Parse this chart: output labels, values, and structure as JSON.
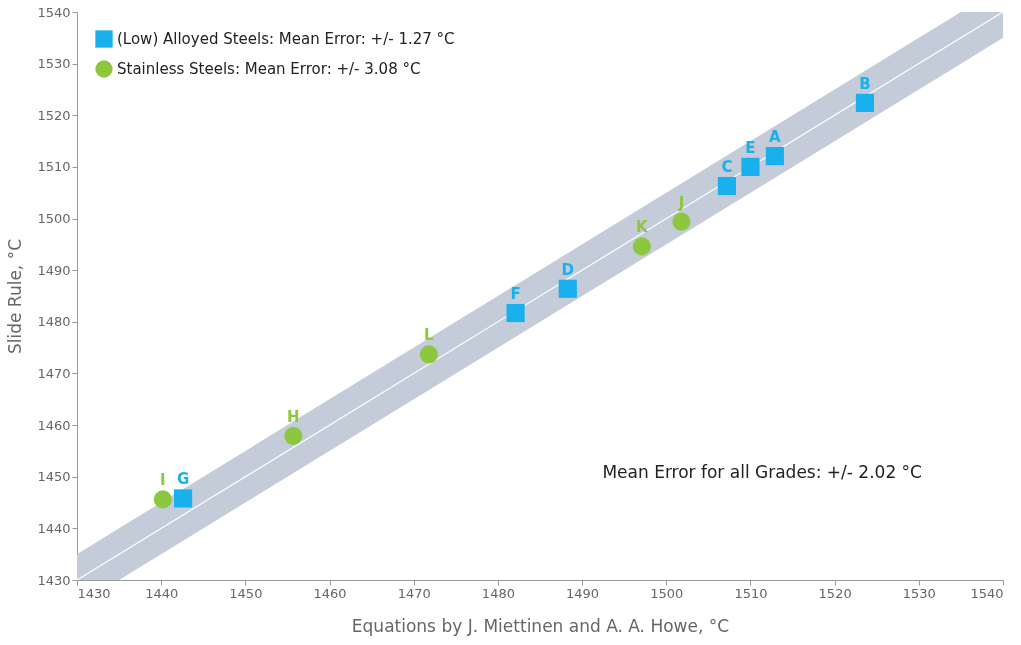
{
  "chart_data": {
    "type": "scatter",
    "xlabel": "Equations by J. Miettinen and A. A. Howe, °C",
    "ylabel": "Slide Rule, °C",
    "xlim": [
      1430,
      1540
    ],
    "ylim": [
      1430,
      1540
    ],
    "xticks": [
      1430,
      1440,
      1450,
      1460,
      1470,
      1480,
      1490,
      1500,
      1510,
      1520,
      1530,
      1540
    ],
    "yticks": [
      1430,
      1440,
      1450,
      1460,
      1470,
      1480,
      1490,
      1500,
      1510,
      1520,
      1530,
      1540
    ],
    "grid": false,
    "legend": "top left",
    "series": [
      {
        "type": "line",
        "color": "#ffffff",
        "x": [
          1430,
          1435,
          1535,
          1540
        ],
        "values": [
          1430,
          1435,
          1535,
          1540
        ],
        "lower": [
          1430,
          1430,
          1530,
          1535
        ],
        "upper": [
          1435,
          1440,
          1540,
          1540
        ]
      },
      {
        "name": "(Low) Alloyed Steels: Mean Error: +/- 1.27 °C",
        "color": "#1ab0ee",
        "marker": "square",
        "x": [
          1523.6,
          1512.9,
          1510.0,
          1507.2,
          1488.3,
          1482.1,
          1442.6
        ],
        "values": [
          1522.4,
          1512.1,
          1510.0,
          1506.3,
          1486.4,
          1481.7,
          1445.8
        ]
      },
      {
        "name": "Stainless Steels: Mean Error: +/- 3.08 °C",
        "color": "#8dc63f",
        "marker": "circle",
        "x": [
          1501.8,
          1497.1,
          1471.8,
          1455.7,
          1440.2
        ],
        "values": [
          1499.4,
          1494.6,
          1473.7,
          1457.9,
          1445.6
        ]
      }
    ],
    "annotations": [
      {
        "text": "B",
        "x": 1523.6,
        "y": 1522.4
      },
      {
        "text": "A",
        "x": 1512.9,
        "y": 1512.1
      },
      {
        "text": "E",
        "x": 1510.0,
        "y": 1510.0
      },
      {
        "text": "C",
        "x": 1507.2,
        "y": 1506.3
      },
      {
        "text": "D",
        "x": 1488.3,
        "y": 1486.4
      },
      {
        "text": "F",
        "x": 1482.1,
        "y": 1481.7
      },
      {
        "text": "G",
        "x": 1442.6,
        "y": 1445.8
      },
      {
        "text": "J",
        "x": 1501.8,
        "y": 1499.4
      },
      {
        "text": "K",
        "x": 1497.1,
        "y": 1494.6
      },
      {
        "text": "L",
        "x": 1471.8,
        "y": 1473.7
      },
      {
        "text": "H",
        "x": 1455.7,
        "y": 1457.9
      },
      {
        "text": "I",
        "x": 1440.2,
        "y": 1445.6
      },
      "Mean Error for all Grades: +/- 2.02 °C"
    ]
  }
}
